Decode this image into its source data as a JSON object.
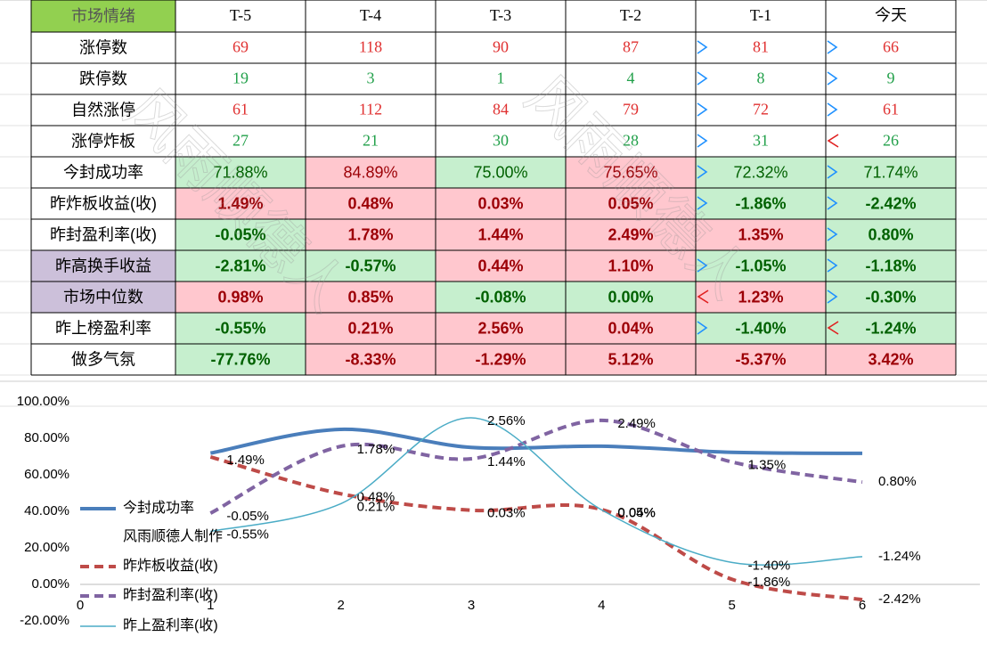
{
  "table": {
    "header": [
      "市场情绪",
      "T-5",
      "T-4",
      "T-3",
      "T-2",
      "T-1",
      "今天"
    ],
    "rows": [
      [
        "涨停数",
        "69",
        "118",
        "90",
        "87",
        "81",
        "66"
      ],
      [
        "跌停数",
        "19",
        "3",
        "1",
        "4",
        "8",
        "9"
      ],
      [
        "自然涨停",
        "61",
        "112",
        "84",
        "79",
        "72",
        "61"
      ],
      [
        "涨停炸板",
        "27",
        "21",
        "30",
        "28",
        "31",
        "26"
      ],
      [
        "今封成功率",
        "71.88%",
        "84.89%",
        "75.00%",
        "75.65%",
        "72.32%",
        "71.74%"
      ],
      [
        "昨炸板收益(收)",
        "1.49%",
        "0.48%",
        "0.03%",
        "0.05%",
        "-1.86%",
        "-2.42%"
      ],
      [
        "昨封盈利率(收)",
        "-0.05%",
        "1.78%",
        "1.44%",
        "2.49%",
        "1.35%",
        "0.80%"
      ],
      [
        "昨高换手收益",
        "-2.81%",
        "-0.57%",
        "0.44%",
        "1.10%",
        "-1.05%",
        "-1.18%"
      ],
      [
        "市场中位数",
        "0.98%",
        "0.85%",
        "-0.08%",
        "0.00%",
        "1.23%",
        "-0.30%"
      ],
      [
        "昨上榜盈利率",
        "-0.55%",
        "0.21%",
        "2.56%",
        "0.04%",
        "-1.40%",
        "-1.24%"
      ],
      [
        "做多气氛",
        "-77.76%",
        "-8.33%",
        "-1.29%",
        "5.12%",
        "-5.37%",
        "3.42%"
      ]
    ]
  },
  "watermark": "风雨顺德人",
  "chart_data": {
    "type": "line",
    "x": [
      1,
      2,
      3,
      4,
      5,
      6
    ],
    "xlim": [
      0,
      6
    ],
    "xticks": [
      0,
      1,
      2,
      3,
      4,
      5,
      6
    ],
    "ylim": [
      -20,
      100
    ],
    "yticks": [
      {
        "value": -20,
        "label": "-20.00%"
      },
      {
        "value": 0,
        "label": "0.00%"
      },
      {
        "value": 20,
        "label": "20.00%"
      },
      {
        "value": 40,
        "label": "40.00%"
      },
      {
        "value": 60,
        "label": "60.00%"
      },
      {
        "value": 80,
        "label": "80.00%"
      },
      {
        "value": 100,
        "label": "100.00%"
      }
    ],
    "y2lim": [
      -3,
      3
    ],
    "legend_note": "风雨顺德人制作",
    "series": [
      {
        "name": "今封成功率",
        "color": "#4a7ebb",
        "values": [
          71.88,
          84.89,
          75.0,
          75.65,
          72.32,
          71.74
        ]
      },
      {
        "name": "昨炸板收益(收)",
        "color": "#be4b48",
        "dashed": true,
        "axis": "y2",
        "values": [
          1.49,
          0.48,
          0.03,
          0.05,
          -1.86,
          -2.42
        ],
        "value_labels": [
          "1.49%",
          "0.48%",
          "0.03%",
          "0.05%",
          "-1.86%",
          "-2.42%"
        ]
      },
      {
        "name": "昨封盈利率(收)",
        "color": "#8064a2",
        "dashed": true,
        "axis": "y2",
        "values": [
          -0.05,
          1.78,
          1.44,
          2.49,
          1.35,
          0.8
        ],
        "value_labels": [
          "-0.05%",
          "1.78%",
          "1.44%",
          "2.49%",
          "1.35%",
          "0.80%"
        ]
      },
      {
        "name": "昨上盈利率(收)",
        "color": "#4bacc6",
        "thin": true,
        "axis": "y2",
        "values": [
          -0.55,
          0.21,
          2.56,
          0.04,
          -1.4,
          -1.24
        ],
        "value_labels": [
          "-0.55%",
          "0.21%",
          "2.56%",
          "0.04%",
          "-1.40%",
          "-1.24%"
        ]
      }
    ]
  }
}
